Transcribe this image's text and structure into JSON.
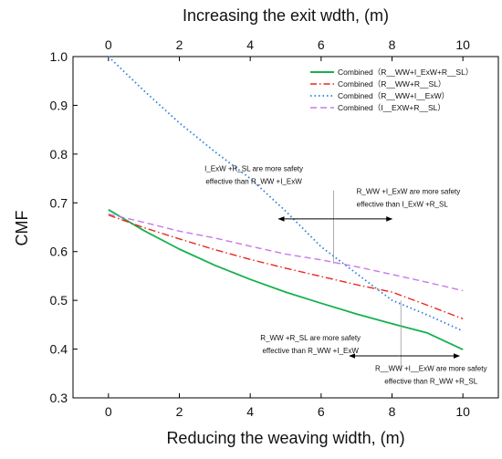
{
  "chart_data": {
    "type": "line",
    "top_xlabel": "Increasing the exit wdth, (m)",
    "xlabel": "Reducing the weaving width, (m)",
    "ylabel": "CMF",
    "xlim": [
      -1,
      11
    ],
    "ylim": [
      0.3,
      1.0
    ],
    "x_ticks": [
      0,
      2,
      4,
      6,
      8,
      10
    ],
    "y_ticks": [
      0.3,
      0.4,
      0.5,
      0.6,
      0.7,
      0.8,
      0.9,
      1.0
    ],
    "grid": false,
    "legend_position": "top-right",
    "series": [
      {
        "name": "Combined（R__WW+I_ExW+R__SL）",
        "color": "#18b04f",
        "dash": "solid",
        "x": [
          0,
          1,
          2,
          3,
          4,
          5,
          6,
          7,
          8,
          9,
          10
        ],
        "y": [
          0.686,
          0.643,
          0.605,
          0.572,
          0.543,
          0.517,
          0.494,
          0.472,
          0.452,
          0.433,
          0.399
        ]
      },
      {
        "name": "Combined（R__WW+R__SL）",
        "color": "#e8281e",
        "dash": "dashdot",
        "x": [
          0,
          1,
          2,
          3,
          4,
          5,
          6,
          7,
          8,
          9,
          10
        ],
        "y": [
          0.675,
          0.649,
          0.626,
          0.604,
          0.584,
          0.566,
          0.549,
          0.532,
          0.517,
          0.49,
          0.462
        ]
      },
      {
        "name": "Combined（R__WW+I__ExW）",
        "color": "#2a7ee0",
        "dash": "dotted",
        "x": [
          0,
          1,
          2,
          3,
          4,
          5,
          6,
          7,
          8,
          9,
          10
        ],
        "y": [
          1.0,
          0.93,
          0.864,
          0.805,
          0.75,
          0.683,
          0.61,
          0.555,
          0.5,
          0.47,
          0.437
        ]
      },
      {
        "name": "Combined（I__EXW+R__SL）",
        "color": "#c878e8",
        "dash": "dashed",
        "x": [
          0,
          1,
          2,
          3,
          4,
          5,
          6,
          7,
          8,
          9,
          10
        ],
        "y": [
          0.677,
          0.66,
          0.642,
          0.628,
          0.611,
          0.595,
          0.583,
          0.569,
          0.553,
          0.537,
          0.52
        ]
      }
    ],
    "annotations": [
      {
        "lines": [
          "I_ExW +R_SL are more safety",
          "effective than R_WW +I_ExW"
        ],
        "x": 4.1,
        "y": 0.765,
        "anchor": "middle"
      },
      {
        "lines": [
          "R_WW +I_ExW  are more safety",
          "effective than I_ExW +R_SL"
        ],
        "x": 7.0,
        "y": 0.718,
        "anchor": "start"
      },
      {
        "lines": [
          "R_WW +R_SL are more safety",
          "effective than R_WW +I_ExW"
        ],
        "x": 5.7,
        "y": 0.418,
        "anchor": "middle"
      },
      {
        "lines": [
          "R__WW +I__ExW are more safety",
          "effective than R_WW +R_SL"
        ],
        "x": 9.1,
        "y": 0.355,
        "anchor": "middle"
      }
    ],
    "arrows": [
      {
        "x1": 6.4,
        "x2": 4.8,
        "y": 0.667
      },
      {
        "x1": 6.4,
        "x2": 8.0,
        "y": 0.667
      },
      {
        "x1": 8.2,
        "x2": 6.8,
        "y": 0.386
      },
      {
        "x1": 8.2,
        "x2": 9.9,
        "y": 0.386
      }
    ],
    "reference_lines": [
      {
        "x": 6.35,
        "y1": 0.575,
        "y2": 0.725
      },
      {
        "x": 8.25,
        "y1": 0.355,
        "y2": 0.5
      }
    ]
  }
}
